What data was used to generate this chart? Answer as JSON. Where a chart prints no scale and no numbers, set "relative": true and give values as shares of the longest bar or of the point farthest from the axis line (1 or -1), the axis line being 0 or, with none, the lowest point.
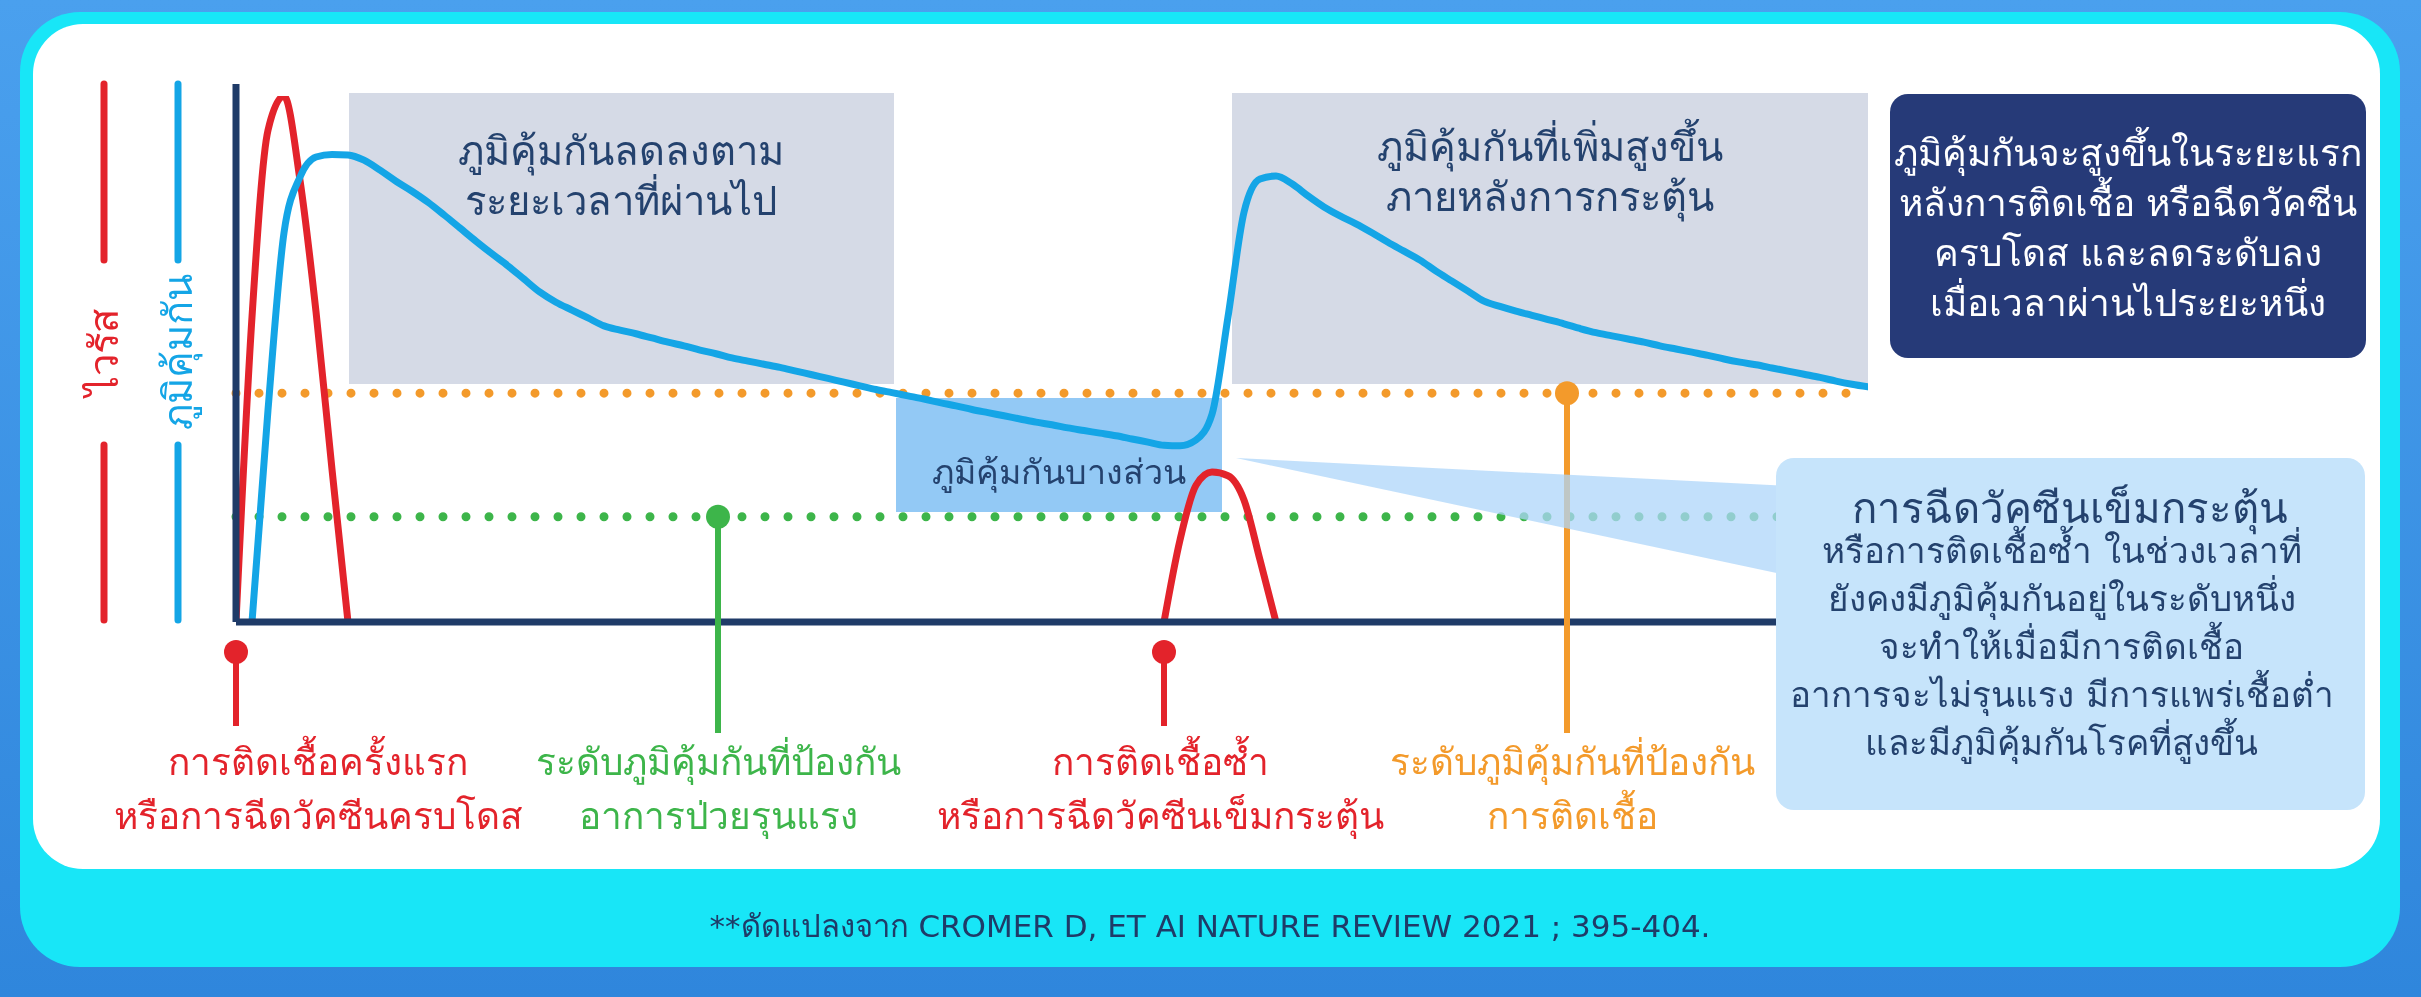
{
  "chart_data": {
    "type": "line",
    "relative": true,
    "categories": [
      null,
      null,
      null,
      null,
      null,
      null,
      null,
      null,
      null,
      null,
      null,
      null,
      null,
      null,
      null,
      null,
      null,
      null,
      null,
      null,
      null,
      null,
      null,
      null,
      null,
      null,
      null,
      null,
      null,
      null,
      null,
      null,
      null,
      null,
      null,
      null,
      null,
      null,
      null,
      null,
      null,
      null,
      null,
      null,
      null,
      null,
      null,
      null,
      null,
      null,
      null,
      null,
      null,
      null,
      null,
      null,
      null,
      null,
      null,
      null,
      null,
      null,
      null,
      null,
      null,
      null,
      null,
      null,
      null,
      null,
      null,
      null,
      null,
      null,
      null,
      null,
      null,
      null,
      null,
      null,
      null,
      null,
      null,
      null,
      null,
      null,
      null,
      null,
      null,
      null,
      null,
      null,
      null,
      null,
      null,
      null,
      null,
      null,
      null,
      null,
      null,
      null,
      null
    ],
    "series": [
      {
        "name": "ไวรัส",
        "color": "#e3232b",
        "values": [
          0,
          0.58,
          0.935,
          1,
          0.84,
          0.59,
          0.29,
          0,
          null,
          null,
          null,
          null,
          null,
          null,
          null,
          null,
          null,
          null,
          null,
          null,
          null,
          null,
          null,
          null,
          null,
          null,
          null,
          null,
          null,
          null,
          null,
          null,
          null,
          null,
          null,
          null,
          null,
          null,
          null,
          null,
          null,
          null,
          null,
          null,
          null,
          null,
          null,
          null,
          null,
          null,
          null,
          null,
          null,
          null,
          null,
          null,
          null,
          null,
          0,
          0.156,
          0.26,
          0.285,
          0.278,
          0.232,
          0.118,
          0,
          null,
          null,
          null,
          null,
          null,
          null,
          null,
          null,
          null,
          null,
          null,
          null,
          null,
          null,
          null,
          null,
          null,
          null,
          null,
          null,
          null,
          null,
          null,
          null,
          null,
          null,
          null,
          null,
          null,
          null,
          null,
          null,
          null,
          null,
          null,
          null,
          null
        ]
      },
      {
        "name": "ภูมิคุ้มกัน",
        "color": "#14a5e6",
        "values": [
          null,
          0,
          0.403,
          0.74,
          0.846,
          0.884,
          0.889,
          0.888,
          0.878,
          0.859,
          0.838,
          0.819,
          0.798,
          0.774,
          0.749,
          0.724,
          0.7,
          0.677,
          0.652,
          0.627,
          0.608,
          0.593,
          0.578,
          0.563,
          0.555,
          0.548,
          0.54,
          0.532,
          0.525,
          0.517,
          0.51,
          0.502,
          0.496,
          0.49,
          0.484,
          0.477,
          0.47,
          0.463,
          0.456,
          0.449,
          0.442,
          0.436,
          0.43,
          0.424,
          0.417,
          0.411,
          0.404,
          0.398,
          0.392,
          0.386,
          0.38,
          0.375,
          0.369,
          0.364,
          0.359,
          0.354,
          0.348,
          0.342,
          0.336,
          0.335,
          0.346,
          0.395,
          0.58,
          0.779,
          0.842,
          0.848,
          0.833,
          0.81,
          0.789,
          0.772,
          0.757,
          0.74,
          0.722,
          0.705,
          0.688,
          0.667,
          0.648,
          0.629,
          0.61,
          0.6,
          0.591,
          0.583,
          0.575,
          0.567,
          0.558,
          0.55,
          0.544,
          0.538,
          0.532,
          0.525,
          0.519,
          0.513,
          0.507,
          0.5,
          0.494,
          0.489,
          0.483,
          0.477,
          0.471,
          0.465,
          0.458,
          0.452,
          0.447
        ]
      }
    ],
    "legend": "left",
    "ref_lines": [
      {
        "axis": "y",
        "value": 0.435,
        "label": "ระดับภูมิคุ้มกันที่ป้องกัน\nการติดเชื้อ",
        "color": "#f39a2b",
        "line_style": "dotted"
      },
      {
        "axis": "y",
        "value": 0.2,
        "label": "ระดับภูมิคุ้มกันที่ป้องกัน\nอาการป่วยรุนแรง",
        "color": "#3db54a",
        "line_style": "dotted"
      }
    ],
    "annotations": [
      "ภูมิคุ้มกันลดลงตาม\nระยะเวลาที่ผ่านไป",
      "ภูมิคุ้มกันที่เพิ่มสูงขึ้น\nภายหลังการกระตุ้น",
      "ภูมิคุ้มกันบางส่วน",
      "ภูมิคุ้มกันจะสูงขึ้นในระยะแรก\nหลังการติดเชื้อ หรือฉีดวัคซีน\nครบโดส และลดระดับลง\nเมื่อเวลาผ่านไประยะหนึ่ง",
      "การติดเชื้อครั้งแรก\nหรือการฉีดวัคซีนครบโดส",
      "การติดเชื้อซ้ำ\nหรือการฉีดวัคซีนเข็มกระตุ้น",
      "การฉีดวัคซีนเข็มกระตุ้น",
      "หรือการติดเชื้อซ้ำ ในช่วงเวลาที่\nยังคงมีภูมิคุ้มกันอยู่ในระดับหนึ่ง\nจะทำให้เมื่อมีการติดเชื้อ\nอาการจะไม่รุนแรง มีการแพร่เชื้อต่ำ\nและมีภูมิคุ้มกันโรคที่สูงขึ้น",
      "**ดัดแปลงจาก CROMER D, ET AI NATURE REVIEW 2021 ; 395-404."
    ]
  }
}
